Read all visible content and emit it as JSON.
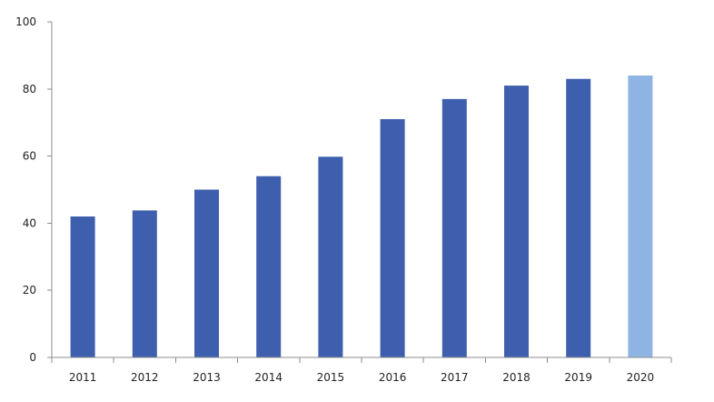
{
  "chart_data": {
    "type": "bar",
    "title": "",
    "xlabel": "",
    "ylabel": "",
    "categories": [
      "2011",
      "2012",
      "2013",
      "2014",
      "2015",
      "2016",
      "2017",
      "2018",
      "2019",
      "2020"
    ],
    "values": [
      42,
      43.8,
      50,
      54,
      59.8,
      71,
      77,
      81,
      83,
      84
    ],
    "ylim": [
      0,
      100
    ],
    "yticks": [
      0,
      20,
      40,
      60,
      80,
      100
    ],
    "grid": false,
    "legend": "none",
    "colors": {
      "bar": "#3e5fad",
      "bar_highlight": "#8eb4e3",
      "axis": "#8c8c8c"
    },
    "highlighted_category": "2020"
  }
}
